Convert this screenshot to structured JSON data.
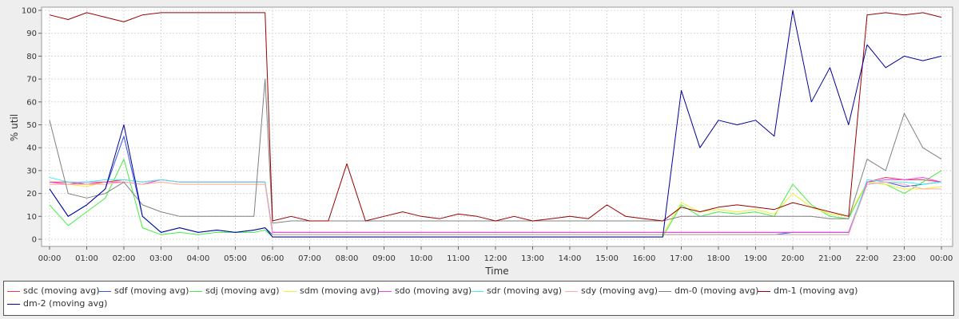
{
  "chart_data": {
    "type": "line",
    "title": "",
    "xlabel": "Time",
    "ylabel": "% util",
    "xlim": [
      "00:00",
      "24:00"
    ],
    "ylim": [
      0,
      100
    ],
    "x_ticks": [
      "00:00",
      "01:00",
      "02:00",
      "03:00",
      "04:00",
      "05:00",
      "06:00",
      "07:00",
      "08:00",
      "09:00",
      "10:00",
      "11:00",
      "12:00",
      "13:00",
      "14:00",
      "15:00",
      "16:00",
      "17:00",
      "18:00",
      "19:00",
      "20:00",
      "21:00",
      "22:00",
      "23:00",
      "00:00"
    ],
    "y_ticks": [
      "0",
      "10",
      "20",
      "30",
      "40",
      "50",
      "60",
      "70",
      "80",
      "90",
      "100"
    ],
    "grid": true,
    "legend_position": "bottom",
    "x_hours": [
      0,
      0.5,
      1,
      1.5,
      2,
      2.5,
      3,
      3.5,
      4,
      4.5,
      5,
      5.5,
      5.8,
      6,
      6.5,
      7,
      7.5,
      8,
      8.5,
      9,
      9.5,
      10,
      10.5,
      11,
      11.5,
      12,
      12.5,
      13,
      13.5,
      14,
      14.5,
      15,
      15.5,
      16,
      16.5,
      17,
      17.5,
      18,
      18.5,
      19,
      19.5,
      20,
      20.5,
      21,
      21.5,
      22,
      22.5,
      23,
      23.5,
      24
    ],
    "series": [
      {
        "name": "sdc (moving avg)",
        "color": "#e8384f",
        "values": [
          25,
          25,
          24,
          25,
          26,
          25,
          26,
          25,
          25,
          25,
          25,
          25,
          25,
          3,
          3,
          3,
          3,
          3,
          3,
          3,
          3,
          3,
          3,
          3,
          3,
          3,
          3,
          3,
          3,
          3,
          3,
          3,
          3,
          3,
          3,
          3,
          3,
          3,
          3,
          3,
          3,
          3,
          3,
          3,
          3,
          25,
          27,
          26,
          26,
          25
        ]
      },
      {
        "name": "sdf (moving avg)",
        "color": "#3355ee",
        "values": [
          22,
          10,
          15,
          22,
          45,
          10,
          3,
          5,
          3,
          4,
          3,
          4,
          5,
          2,
          2,
          2,
          2,
          2,
          2,
          2,
          2,
          2,
          2,
          2,
          2,
          2,
          2,
          2,
          2,
          2,
          2,
          2,
          2,
          2,
          2,
          2,
          2,
          2,
          2,
          2,
          2,
          3,
          3,
          3,
          3,
          24,
          25,
          23,
          24,
          25
        ]
      },
      {
        "name": "sdj (moving avg)",
        "color": "#44ee44",
        "values": [
          15,
          6,
          12,
          18,
          35,
          5,
          2,
          3,
          2,
          3,
          3,
          3,
          4,
          1,
          1,
          1,
          1,
          1,
          1,
          1,
          1,
          1,
          1,
          1,
          1,
          1,
          1,
          1,
          1,
          1,
          1,
          1,
          1,
          1,
          1,
          15,
          10,
          12,
          11,
          12,
          10,
          24,
          15,
          10,
          9,
          25,
          24,
          20,
          25,
          30
        ]
      },
      {
        "name": "sdm (moving avg)",
        "color": "#eeee33",
        "values": [
          24,
          24,
          23,
          25,
          25,
          24,
          25,
          24,
          24,
          24,
          24,
          24,
          24,
          2,
          2,
          2,
          2,
          2,
          2,
          2,
          2,
          2,
          2,
          2,
          2,
          2,
          2,
          2,
          2,
          2,
          2,
          2,
          2,
          2,
          2,
          16,
          12,
          13,
          12,
          13,
          11,
          20,
          14,
          11,
          10,
          25,
          24,
          22,
          22,
          23
        ]
      },
      {
        "name": "sdo (moving avg)",
        "color": "#ee44ee",
        "values": [
          25,
          24,
          25,
          25,
          25,
          24,
          26,
          25,
          25,
          25,
          25,
          25,
          25,
          3,
          3,
          3,
          3,
          3,
          3,
          3,
          3,
          3,
          3,
          3,
          3,
          3,
          3,
          3,
          3,
          3,
          3,
          3,
          3,
          3,
          3,
          3,
          3,
          3,
          3,
          3,
          3,
          3,
          3,
          3,
          3,
          25,
          26,
          26,
          27,
          25
        ]
      },
      {
        "name": "sdr (moving avg)",
        "color": "#44eeee",
        "values": [
          27,
          25,
          25,
          26,
          26,
          25,
          26,
          25,
          25,
          25,
          25,
          25,
          25,
          2,
          2,
          2,
          2,
          2,
          2,
          2,
          2,
          2,
          2,
          2,
          2,
          2,
          2,
          2,
          2,
          2,
          2,
          2,
          2,
          2,
          2,
          2,
          2,
          2,
          2,
          2,
          2,
          2,
          2,
          2,
          2,
          26,
          25,
          25,
          24,
          25
        ]
      },
      {
        "name": "sdy (moving avg)",
        "color": "#ffaaaa",
        "values": [
          24,
          24,
          24,
          24,
          25,
          24,
          25,
          24,
          24,
          24,
          24,
          24,
          24,
          2,
          2,
          2,
          2,
          2,
          2,
          2,
          2,
          2,
          2,
          2,
          2,
          2,
          2,
          2,
          2,
          2,
          2,
          2,
          2,
          2,
          2,
          2,
          2,
          2,
          2,
          2,
          2,
          2,
          2,
          2,
          2,
          24,
          25,
          24,
          22,
          22
        ]
      },
      {
        "name": "dm-0 (moving avg)",
        "color": "#808080",
        "values": [
          52,
          20,
          18,
          20,
          25,
          15,
          12,
          10,
          10,
          10,
          10,
          10,
          70,
          7,
          8,
          8,
          8,
          8,
          8,
          8,
          8,
          8,
          8,
          8,
          8,
          8,
          8,
          8,
          8,
          8,
          8,
          8,
          8,
          8,
          8,
          10,
          10,
          10,
          10,
          10,
          10,
          10,
          10,
          9,
          9,
          35,
          30,
          55,
          40,
          35
        ]
      },
      {
        "name": "dm-1 (moving avg)",
        "color": "#990000",
        "values": [
          98,
          96,
          99,
          97,
          95,
          98,
          99,
          99,
          99,
          99,
          99,
          99,
          99,
          8,
          10,
          8,
          8,
          33,
          8,
          10,
          12,
          10,
          9,
          11,
          10,
          8,
          10,
          8,
          9,
          10,
          9,
          15,
          10,
          9,
          8,
          14,
          12,
          14,
          15,
          14,
          13,
          16,
          14,
          12,
          10,
          98,
          99,
          98,
          99,
          97
        ]
      },
      {
        "name": "dm-2 (moving avg)",
        "color": "#000099",
        "values": [
          22,
          10,
          15,
          22,
          50,
          10,
          3,
          5,
          3,
          4,
          3,
          4,
          5,
          1,
          1,
          1,
          1,
          1,
          1,
          1,
          1,
          1,
          1,
          1,
          1,
          1,
          1,
          1,
          1,
          1,
          1,
          1,
          1,
          1,
          1,
          65,
          40,
          52,
          50,
          52,
          45,
          100,
          60,
          75,
          50,
          85,
          75,
          80,
          78,
          80
        ]
      }
    ]
  }
}
